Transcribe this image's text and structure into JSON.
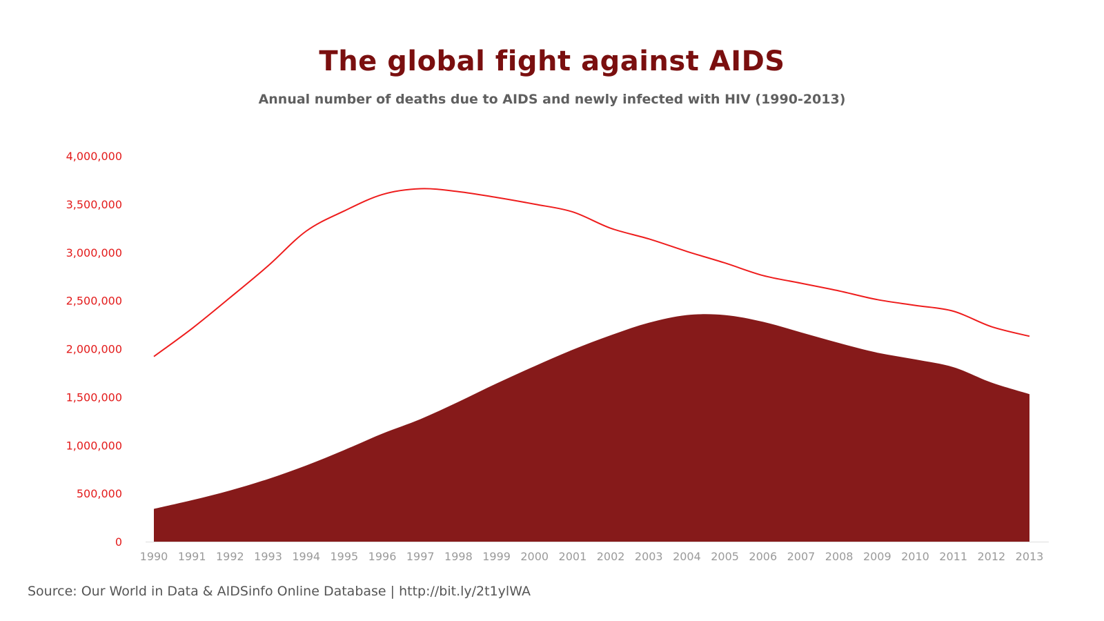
{
  "header": {
    "title": "The global fight against AIDS",
    "subtitle": "Annual number of deaths due to AIDS and newly infected with HIV (1990-2013)"
  },
  "footer": {
    "source": "Source: Our World in Data & AIDSinfo Online Database | http://bit.ly/2t1ylWA"
  },
  "colors": {
    "title": "#7a0f0f",
    "line": "#ee1c1c",
    "area": "#861a1a",
    "ytick": "#e31b1b",
    "xtick": "#9a9a9a",
    "axis": "#dddddd"
  },
  "chart_data": {
    "type": "area",
    "x": [
      1990,
      1991,
      1992,
      1993,
      1994,
      1995,
      1996,
      1997,
      1998,
      1999,
      2000,
      2001,
      2002,
      2003,
      2004,
      2005,
      2006,
      2007,
      2008,
      2009,
      2010,
      2011,
      2012,
      2013
    ],
    "series": [
      {
        "style": "line",
        "values": [
          1920000,
          2210000,
          2530000,
          2860000,
          3220000,
          3430000,
          3600000,
          3660000,
          3630000,
          3570000,
          3500000,
          3420000,
          3250000,
          3140000,
          3010000,
          2890000,
          2760000,
          2680000,
          2600000,
          2510000,
          2450000,
          2390000,
          2230000,
          2130000
        ]
      },
      {
        "style": "area",
        "values": [
          340000,
          430000,
          530000,
          650000,
          790000,
          950000,
          1120000,
          1270000,
          1450000,
          1640000,
          1820000,
          1990000,
          2140000,
          2270000,
          2350000,
          2350000,
          2280000,
          2170000,
          2060000,
          1960000,
          1890000,
          1810000,
          1650000,
          1530000
        ]
      }
    ],
    "yticks": [
      "0",
      "500,000",
      "1,000,000",
      "1,500,000",
      "2,000,000",
      "2,500,000",
      "3,000,000",
      "3,500,000",
      "4,000,000"
    ],
    "ylim": [
      0,
      4000000
    ],
    "grid": false,
    "legend": "none"
  }
}
